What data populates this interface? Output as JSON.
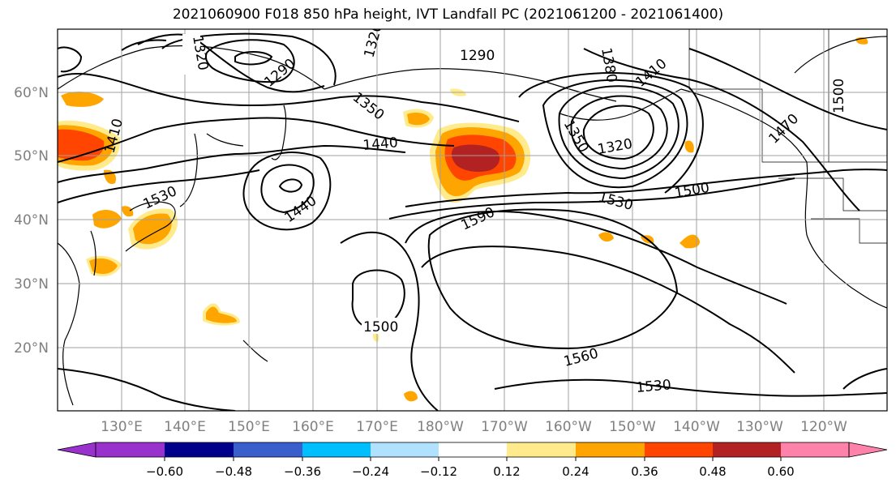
{
  "title": "2021060900 F018 850 hPa height, IVT Landfall PC (2021061200 - 2021061400)",
  "lat_labels": [
    "60°N",
    "50°N",
    "40°N",
    "30°N",
    "20°N"
  ],
  "lon_labels": [
    "130°E",
    "140°E",
    "150°E",
    "160°E",
    "170°E",
    "180°W",
    "170°W",
    "160°W",
    "150°W",
    "140°W",
    "130°W",
    "120°W"
  ],
  "contour_labels": [
    "1320",
    "1290",
    "1320",
    "1290",
    "1350",
    "1380",
    "1410",
    "1410",
    "1440",
    "1350",
    "1320",
    "1470",
    "1500",
    "1530",
    "1440",
    "1530",
    "1500",
    "1590",
    "1500",
    "1560",
    "1530"
  ],
  "colorbar": {
    "colors": [
      "#9932cc",
      "#00008b",
      "#3a5fcd",
      "#00bfff",
      "#b0e2ff",
      "#ffffff",
      "#ffeb8b",
      "#ffa500",
      "#ff4500",
      "#b22222",
      "#ff82ab"
    ],
    "tick_labels": [
      "−0.60",
      "−0.48",
      "−0.36",
      "−0.24",
      "−0.12",
      "0.12",
      "0.24",
      "0.36",
      "0.48",
      "0.60"
    ]
  },
  "field_colors": {
    "c024": "#ffeb8b",
    "c036": "#ffa500",
    "c048": "#ff4500",
    "c060": "#b22222"
  }
}
